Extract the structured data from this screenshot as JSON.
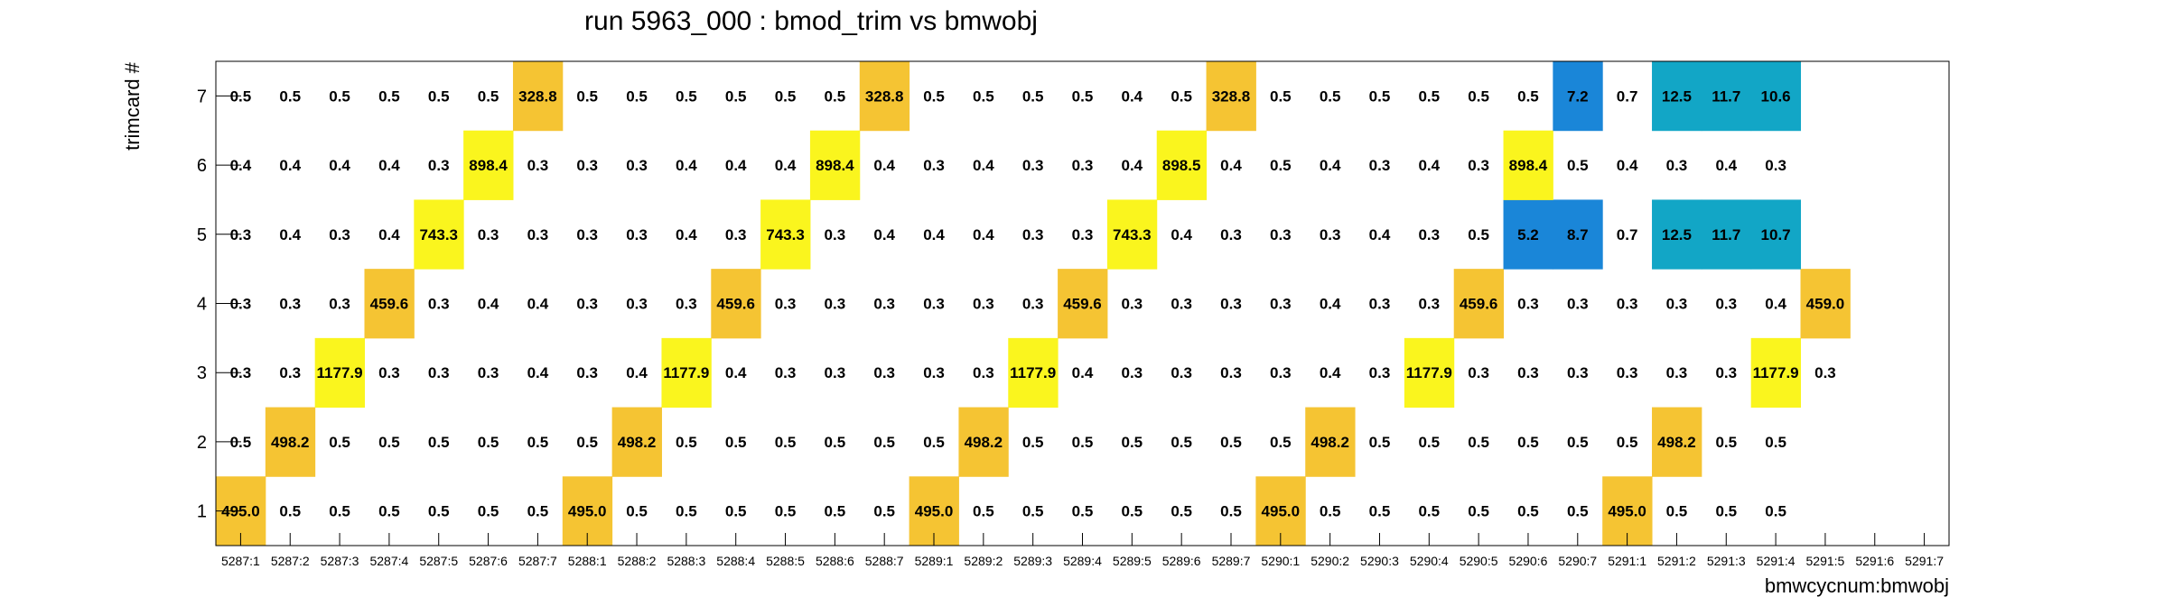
{
  "chart_data": {
    "type": "heatmap",
    "title": "run 5963_000 : bmod_trim vs bmwobj",
    "xlabel": "bmwcycnum:bmwobj",
    "ylabel": "trimcard #",
    "x_categories": [
      "5287:1",
      "5287:2",
      "5287:3",
      "5287:4",
      "5287:5",
      "5287:6",
      "5287:7",
      "5288:1",
      "5288:2",
      "5288:3",
      "5288:4",
      "5288:5",
      "5288:6",
      "5288:7",
      "5289:1",
      "5289:2",
      "5289:3",
      "5289:4",
      "5289:5",
      "5289:6",
      "5289:7",
      "5290:1",
      "5290:2",
      "5290:3",
      "5290:4",
      "5290:5",
      "5290:6",
      "5290:7",
      "5291:1",
      "5291:2",
      "5291:3",
      "5291:4",
      "5291:5",
      "5291:6",
      "5291:7"
    ],
    "y_categories": [
      "1",
      "2",
      "3",
      "4",
      "5",
      "6",
      "7"
    ],
    "values": [
      [
        "495.0",
        "0.5",
        "0.5",
        "0.5",
        "0.5",
        "0.5",
        "0.5",
        "495.0",
        "0.5",
        "0.5",
        "0.5",
        "0.5",
        "0.5",
        "0.5",
        "495.0",
        "0.5",
        "0.5",
        "0.5",
        "0.5",
        "0.5",
        "0.5",
        "495.0",
        "0.5",
        "0.5",
        "0.5",
        "0.5",
        "0.5",
        "0.5",
        "495.0",
        "0.5",
        "0.5",
        "0.5",
        null,
        null,
        null
      ],
      [
        "0.5",
        "498.2",
        "0.5",
        "0.5",
        "0.5",
        "0.5",
        "0.5",
        "0.5",
        "498.2",
        "0.5",
        "0.5",
        "0.5",
        "0.5",
        "0.5",
        "0.5",
        "498.2",
        "0.5",
        "0.5",
        "0.5",
        "0.5",
        "0.5",
        "0.5",
        "498.2",
        "0.5",
        "0.5",
        "0.5",
        "0.5",
        "0.5",
        "0.5",
        "498.2",
        "0.5",
        "0.5",
        null,
        null,
        null
      ],
      [
        "0.3",
        "0.3",
        "1177.9",
        "0.3",
        "0.3",
        "0.3",
        "0.4",
        "0.3",
        "0.4",
        "1177.9",
        "0.4",
        "0.3",
        "0.3",
        "0.3",
        "0.3",
        "0.3",
        "1177.9",
        "0.4",
        "0.3",
        "0.3",
        "0.3",
        "0.3",
        "0.4",
        "0.3",
        "1177.9",
        "0.3",
        "0.3",
        "0.3",
        "0.3",
        "0.3",
        "0.3",
        "1177.9",
        "0.3",
        null,
        null,
        null
      ],
      [
        "0.3",
        "0.3",
        "0.3",
        "459.6",
        "0.3",
        "0.4",
        "0.4",
        "0.3",
        "0.3",
        "0.3",
        "459.6",
        "0.3",
        "0.3",
        "0.3",
        "0.3",
        "0.3",
        "0.3",
        "459.6",
        "0.3",
        "0.3",
        "0.3",
        "0.3",
        "0.4",
        "0.3",
        "0.3",
        "459.6",
        "0.3",
        "0.3",
        "0.3",
        "0.3",
        "0.3",
        "0.4",
        "459.0",
        null,
        null,
        null
      ],
      [
        "0.3",
        "0.4",
        "0.3",
        "0.4",
        "743.3",
        "0.3",
        "0.3",
        "0.3",
        "0.3",
        "0.4",
        "0.3",
        "743.3",
        "0.3",
        "0.4",
        "0.4",
        "0.4",
        "0.3",
        "0.3",
        "743.3",
        "0.4",
        "0.3",
        "0.3",
        "0.3",
        "0.4",
        "0.3",
        "0.5",
        "5.2",
        "8.7",
        "0.7",
        "12.5",
        "11.7",
        "10.7",
        null,
        null,
        null
      ],
      [
        "0.4",
        "0.4",
        "0.4",
        "0.4",
        "0.3",
        "898.4",
        "0.3",
        "0.3",
        "0.3",
        "0.4",
        "0.4",
        "0.4",
        "898.4",
        "0.4",
        "0.3",
        "0.4",
        "0.3",
        "0.3",
        "0.4",
        "898.5",
        "0.4",
        "0.5",
        "0.4",
        "0.3",
        "0.4",
        "0.3",
        "898.4",
        "0.5",
        "0.4",
        "0.3",
        "0.4",
        "0.3",
        null,
        null,
        null
      ],
      [
        "0.5",
        "0.5",
        "0.5",
        "0.5",
        "0.5",
        "0.5",
        "328.8",
        "0.5",
        "0.5",
        "0.5",
        "0.5",
        "0.5",
        "0.5",
        "328.8",
        "0.5",
        "0.5",
        "0.5",
        "0.5",
        "0.4",
        "0.5",
        "328.8",
        "0.5",
        "0.5",
        "0.5",
        "0.5",
        "0.5",
        "0.5",
        "7.2",
        "0.7",
        "12.5",
        "11.7",
        "10.6",
        null,
        null,
        null
      ]
    ],
    "colors": {
      "background": "#ffffff",
      "frame": "#000000",
      "low_blue": "#1a86d8",
      "cyan": "#12a6c6",
      "orange": "#f5c433",
      "yellow": "#faf51e"
    }
  }
}
